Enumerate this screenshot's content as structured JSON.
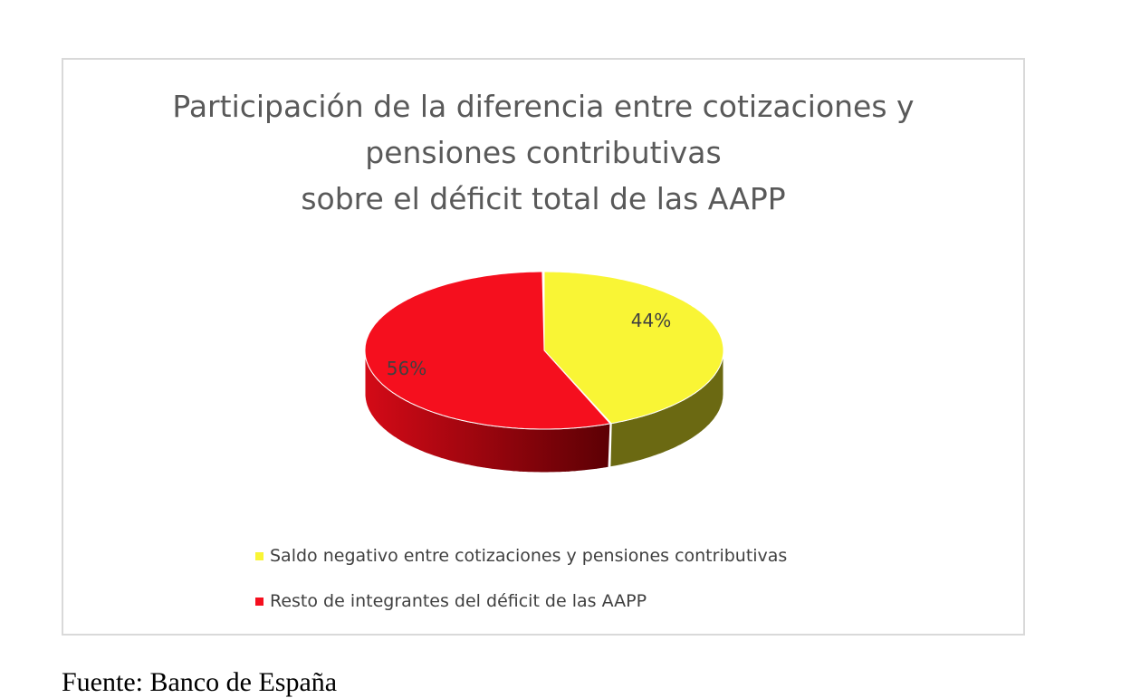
{
  "chart_data": {
    "type": "pie",
    "style": "3d",
    "title": [
      "Participación de la diferencia entre cotizaciones y",
      "pensiones contributivas",
      "sobre el déficit total de las AAPP"
    ],
    "slices": [
      {
        "name": "Saldo negativo entre cotizaciones y pensiones contributivas",
        "value": 44,
        "label": "44%",
        "color": "#f9f535",
        "side_color": "#6b6912"
      },
      {
        "name": "Resto de integrantes del déficit de las AAPP",
        "value": 56,
        "label": "56%",
        "color": "#f50f1e",
        "side_color": "#b00612"
      }
    ],
    "legend_position": "bottom"
  },
  "source": "Fuente: Banco de España"
}
